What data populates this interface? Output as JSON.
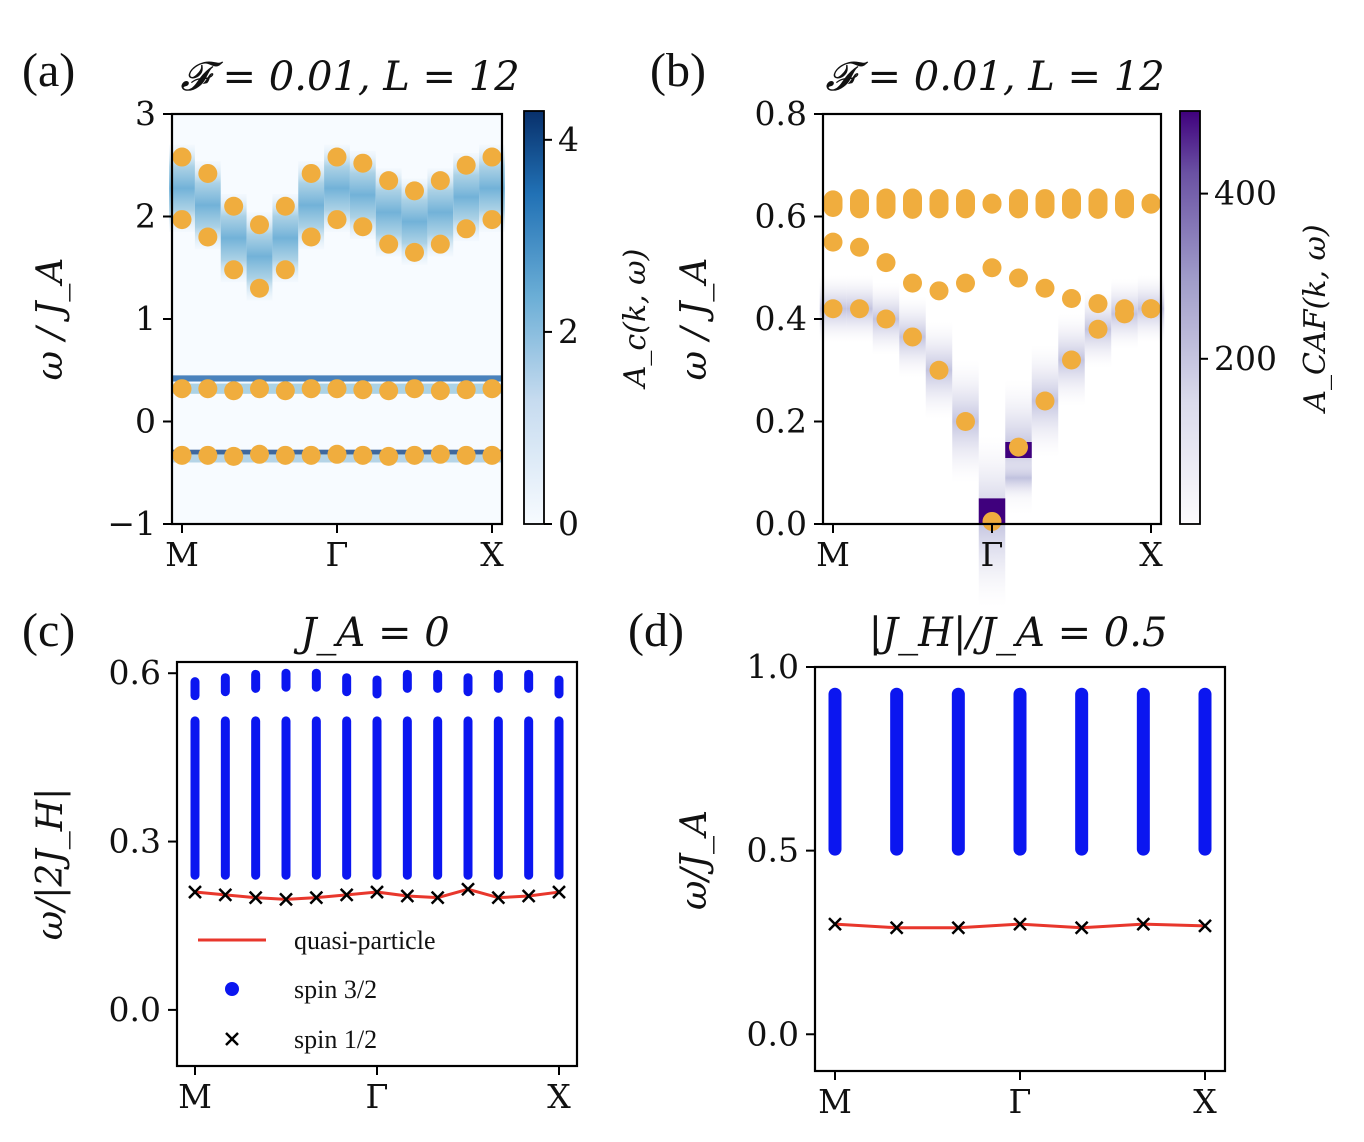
{
  "colors": {
    "orange": "#f0ad3e",
    "blue_dark": "#08306b",
    "purple_dark": "#3f007d",
    "spin32": "#0b16f0",
    "qp": "#e8372c",
    "spin12": "#000000"
  },
  "chart_data": [
    {
      "id": "a",
      "panel_label": "(a)",
      "type": "heatmap",
      "title": "𝓕 = 0.01, L = 12",
      "ylabel": "ω / J_A",
      "ylim": [
        -1,
        3
      ],
      "yticks": [
        "−1",
        "0",
        "1",
        "2",
        "3"
      ],
      "ytick_values": [
        -1,
        0,
        1,
        2,
        3
      ],
      "xticks": [
        "M",
        "Γ",
        "X"
      ],
      "xtick_positions": [
        0,
        6,
        12
      ],
      "colorbar": {
        "label": "A_c(k, ω)",
        "ticks": [
          "0",
          "2",
          "4"
        ],
        "tick_values": [
          0,
          2,
          4
        ],
        "range": [
          0,
          4.3
        ],
        "cmap": "Blues"
      },
      "k_points": 13,
      "bands": [
        {
          "name": "upper-top",
          "values": [
            2.58,
            2.42,
            2.1,
            1.92,
            2.1,
            2.42,
            2.58,
            2.52,
            2.35,
            2.25,
            2.35,
            2.5,
            2.58
          ]
        },
        {
          "name": "upper-bottom",
          "values": [
            1.97,
            1.8,
            1.48,
            1.3,
            1.48,
            1.8,
            1.97,
            1.9,
            1.73,
            1.65,
            1.73,
            1.88,
            1.97
          ]
        },
        {
          "name": "middle",
          "values": [
            0.32,
            0.32,
            0.3,
            0.32,
            0.3,
            0.32,
            0.32,
            0.31,
            0.3,
            0.32,
            0.3,
            0.31,
            0.32
          ]
        },
        {
          "name": "lower",
          "values": [
            -0.33,
            -0.33,
            -0.34,
            -0.32,
            -0.33,
            -0.33,
            -0.32,
            -0.33,
            -0.34,
            -0.33,
            -0.32,
            -0.33,
            -0.33
          ]
        }
      ]
    },
    {
      "id": "b",
      "panel_label": "(b)",
      "type": "heatmap",
      "title": "𝓕 = 0.01, L = 12",
      "ylabel": "ω / J_A",
      "ylim": [
        0,
        0.8
      ],
      "yticks": [
        "0.0",
        "0.2",
        "0.4",
        "0.6",
        "0.8"
      ],
      "ytick_values": [
        0,
        0.2,
        0.4,
        0.6,
        0.8
      ],
      "xticks": [
        "M",
        "Γ",
        "X"
      ],
      "xtick_positions": [
        0,
        6,
        12
      ],
      "colorbar": {
        "label": "A_CAF(k, ω)",
        "ticks": [
          "200",
          "400"
        ],
        "tick_values": [
          200,
          400
        ],
        "range": [
          0,
          500
        ],
        "cmap": "Purples"
      },
      "k_points": 13,
      "flat_band": {
        "value": 0.625,
        "spread": [
          0.015,
          0.02,
          0.022,
          0.022,
          0.02,
          0.02,
          0.002,
          0.02,
          0.02,
          0.022,
          0.022,
          0.02,
          0.002
        ]
      },
      "bands": [
        {
          "name": "upper-dispersive",
          "values": [
            0.55,
            0.54,
            0.51,
            0.47,
            0.455,
            0.47,
            0.5,
            0.48,
            0.46,
            0.44,
            0.43,
            0.42,
            0.42
          ]
        },
        {
          "name": "lower-dispersive",
          "values": [
            0.42,
            0.42,
            0.4,
            0.365,
            0.3,
            0.2,
            0.005,
            0.15,
            0.24,
            0.32,
            0.38,
            0.41,
            0.42
          ]
        }
      ]
    },
    {
      "id": "c",
      "panel_label": "(c)",
      "type": "scatter",
      "title": "J_A = 0",
      "ylabel": "ω/|2J_H|",
      "ylim": [
        -0.1,
        0.62
      ],
      "yticks": [
        "0.0",
        "0.3",
        "0.6"
      ],
      "ytick_values": [
        0,
        0.3,
        0.6
      ],
      "xticks": [
        "M",
        "Γ",
        "X"
      ],
      "xtick_positions": [
        0,
        6,
        12
      ],
      "k_points": 13,
      "spin32_top": [
        0.585,
        0.592,
        0.598,
        0.6,
        0.6,
        0.592,
        0.588,
        0.598,
        0.598,
        0.592,
        0.598,
        0.598,
        0.588
      ],
      "spin32_range": [
        0.24,
        0.515
      ],
      "quasi_particle": [
        0.21,
        0.205,
        0.2,
        0.197,
        0.2,
        0.205,
        0.21,
        0.203,
        0.2,
        0.215,
        0.2,
        0.203,
        0.21
      ],
      "legend": [
        {
          "label": "quasi-particle",
          "marker": "line"
        },
        {
          "label": "spin 3/2",
          "marker": "dot"
        },
        {
          "label": "spin 1/2",
          "marker": "x"
        }
      ]
    },
    {
      "id": "d",
      "panel_label": "(d)",
      "type": "scatter",
      "title": "|J_H|/J_A = 0.5",
      "ylabel": "ω/J_A",
      "ylim": [
        -0.1,
        1.0
      ],
      "yticks": [
        "0.0",
        "0.5",
        "1.0"
      ],
      "ytick_values": [
        0,
        0.5,
        1.0
      ],
      "xticks": [
        "M",
        "Γ",
        "X"
      ],
      "xtick_positions": [
        0,
        3,
        6
      ],
      "k_points": 7,
      "spin32_range": [
        0.5,
        0.93
      ],
      "quasi_particle": [
        0.3,
        0.29,
        0.29,
        0.3,
        0.29,
        0.3,
        0.295
      ]
    }
  ]
}
